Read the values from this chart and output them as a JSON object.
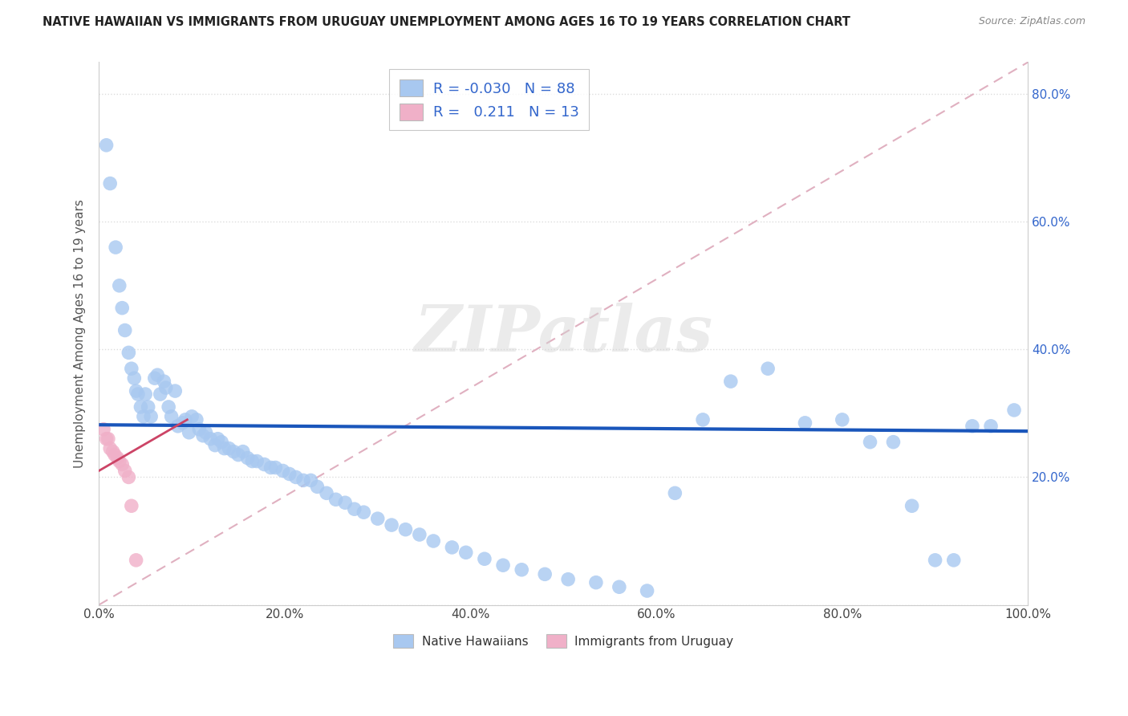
{
  "title": "NATIVE HAWAIIAN VS IMMIGRANTS FROM URUGUAY UNEMPLOYMENT AMONG AGES 16 TO 19 YEARS CORRELATION CHART",
  "source": "Source: ZipAtlas.com",
  "ylabel": "Unemployment Among Ages 16 to 19 years",
  "xlim": [
    0.0,
    1.0
  ],
  "ylim": [
    0.0,
    0.85
  ],
  "xtick_vals": [
    0.0,
    0.2,
    0.4,
    0.6,
    0.8,
    1.0
  ],
  "xticklabels": [
    "0.0%",
    "20.0%",
    "40.0%",
    "60.0%",
    "80.0%",
    "100.0%"
  ],
  "ytick_vals": [
    0.0,
    0.2,
    0.4,
    0.6,
    0.8
  ],
  "ytick_right_vals": [
    0.2,
    0.4,
    0.6,
    0.8
  ],
  "yticklabels_right": [
    "20.0%",
    "40.0%",
    "60.0%",
    "80.0%"
  ],
  "blue_R": "-0.030",
  "blue_N": "88",
  "pink_R": "0.211",
  "pink_N": "13",
  "blue_scatter_color": "#a8c8f0",
  "pink_scatter_color": "#f0b0c8",
  "blue_line_color": "#1a56bb",
  "pink_line_color": "#cc4466",
  "dashed_line_color": "#e0b0c0",
  "grid_color": "#dddddd",
  "watermark": "ZIPatlas",
  "legend_label_blue": "Native Hawaiians",
  "legend_label_pink": "Immigrants from Uruguay",
  "blue_x": [
    0.008,
    0.012,
    0.018,
    0.022,
    0.025,
    0.028,
    0.032,
    0.035,
    0.038,
    0.04,
    0.042,
    0.045,
    0.048,
    0.05,
    0.053,
    0.056,
    0.06,
    0.063,
    0.066,
    0.07,
    0.072,
    0.075,
    0.078,
    0.082,
    0.085,
    0.09,
    0.093,
    0.097,
    0.1,
    0.105,
    0.108,
    0.112,
    0.115,
    0.12,
    0.125,
    0.128,
    0.132,
    0.135,
    0.14,
    0.145,
    0.15,
    0.155,
    0.16,
    0.165,
    0.17,
    0.178,
    0.185,
    0.19,
    0.198,
    0.205,
    0.212,
    0.22,
    0.228,
    0.235,
    0.245,
    0.255,
    0.265,
    0.275,
    0.285,
    0.3,
    0.315,
    0.33,
    0.345,
    0.36,
    0.38,
    0.395,
    0.415,
    0.435,
    0.455,
    0.48,
    0.505,
    0.535,
    0.56,
    0.59,
    0.62,
    0.65,
    0.68,
    0.72,
    0.76,
    0.8,
    0.83,
    0.855,
    0.875,
    0.9,
    0.92,
    0.94,
    0.96,
    0.985
  ],
  "blue_y": [
    0.72,
    0.66,
    0.56,
    0.5,
    0.465,
    0.43,
    0.395,
    0.37,
    0.355,
    0.335,
    0.33,
    0.31,
    0.295,
    0.33,
    0.31,
    0.295,
    0.355,
    0.36,
    0.33,
    0.35,
    0.34,
    0.31,
    0.295,
    0.335,
    0.28,
    0.285,
    0.29,
    0.27,
    0.295,
    0.29,
    0.275,
    0.265,
    0.27,
    0.26,
    0.25,
    0.26,
    0.255,
    0.245,
    0.245,
    0.24,
    0.235,
    0.24,
    0.23,
    0.225,
    0.225,
    0.22,
    0.215,
    0.215,
    0.21,
    0.205,
    0.2,
    0.195,
    0.195,
    0.185,
    0.175,
    0.165,
    0.16,
    0.15,
    0.145,
    0.135,
    0.125,
    0.118,
    0.11,
    0.1,
    0.09,
    0.082,
    0.072,
    0.062,
    0.055,
    0.048,
    0.04,
    0.035,
    0.028,
    0.022,
    0.175,
    0.29,
    0.35,
    0.37,
    0.285,
    0.29,
    0.255,
    0.255,
    0.155,
    0.07,
    0.07,
    0.28,
    0.28,
    0.305
  ],
  "pink_x": [
    0.005,
    0.008,
    0.01,
    0.012,
    0.015,
    0.017,
    0.02,
    0.022,
    0.025,
    0.028,
    0.032,
    0.035,
    0.04
  ],
  "pink_y": [
    0.275,
    0.26,
    0.26,
    0.245,
    0.24,
    0.235,
    0.23,
    0.225,
    0.22,
    0.21,
    0.2,
    0.155,
    0.07
  ]
}
